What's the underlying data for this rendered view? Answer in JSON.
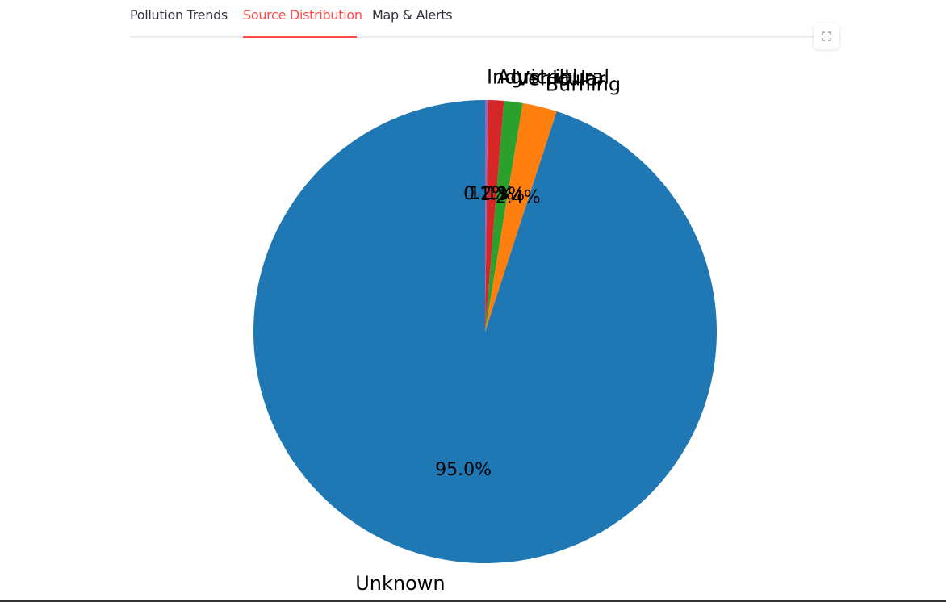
{
  "tabs": [
    {
      "label": "Pollution Trends",
      "active": false
    },
    {
      "label": "Source Distribution",
      "active": true
    },
    {
      "label": "Map & Alerts",
      "active": false
    }
  ],
  "colors": {
    "accent": "#ff4b4b",
    "text": "#31333f"
  },
  "fullscreen_icon": "expand-icon",
  "chart_data": {
    "type": "pie",
    "start_angle_deg": 90,
    "direction": "clockwise",
    "labels": [
      "Industrial",
      "Agricultural",
      "Vehicular",
      "Burning",
      "Unknown"
    ],
    "values": [
      0.2,
      1.1,
      1.3,
      2.4,
      95.0
    ],
    "pct_labels": [
      "0.2%",
      "1.1%",
      "1.3%",
      "2.4%",
      "95.0%"
    ],
    "colors": [
      "#9467bd",
      "#d62728",
      "#2ca02c",
      "#ff7f0e",
      "#1f77b4"
    ]
  }
}
